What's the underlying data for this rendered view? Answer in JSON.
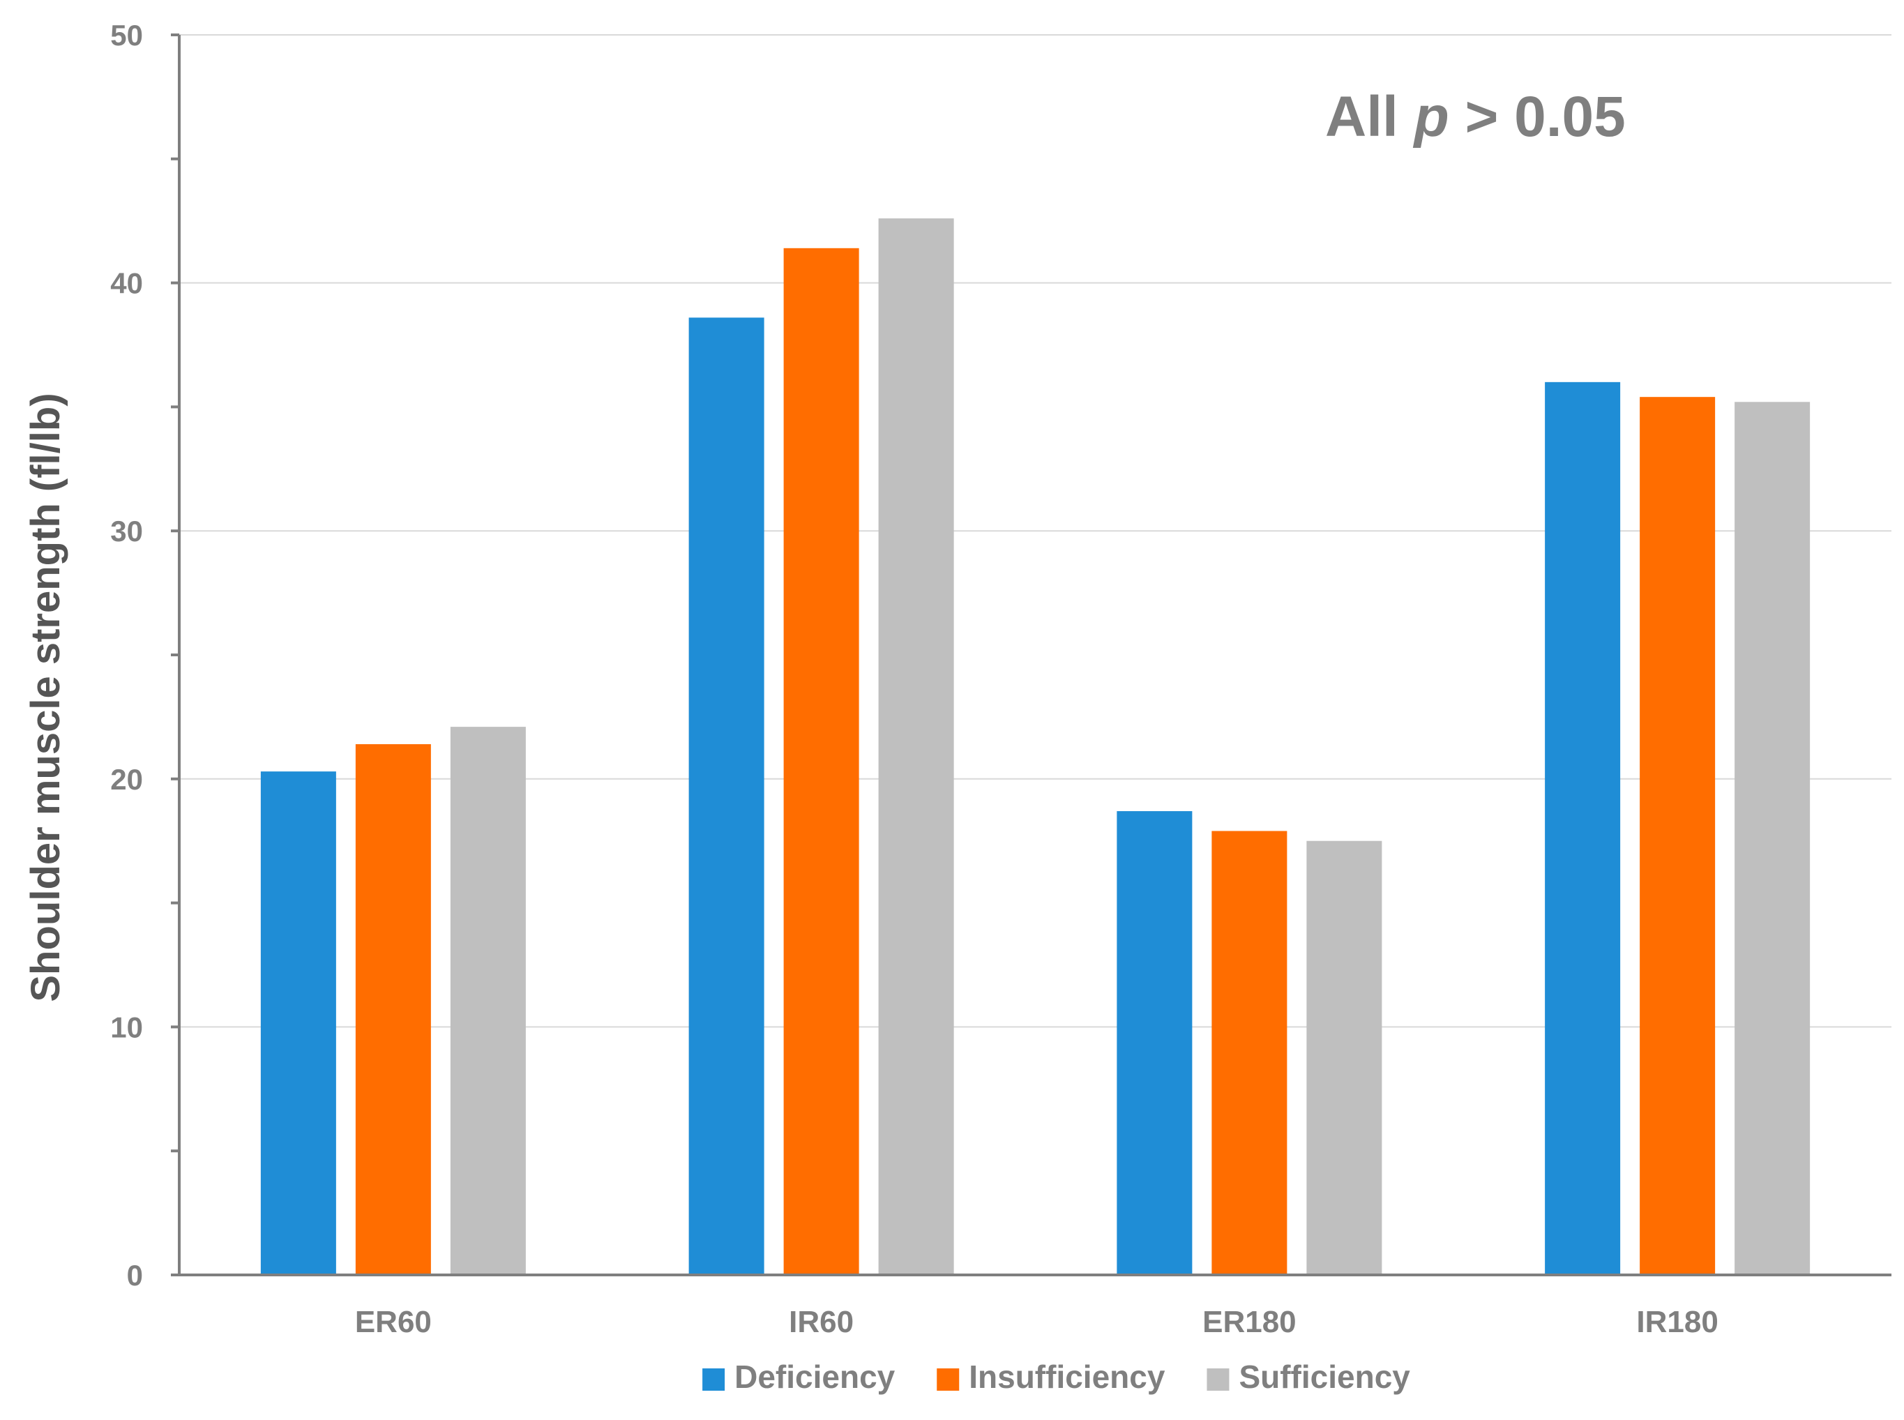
{
  "chart_data": {
    "type": "bar",
    "categories": [
      "ER60",
      "IR60",
      "ER180",
      "IR180"
    ],
    "series": [
      {
        "name": "Deficiency",
        "values": [
          20.3,
          38.6,
          18.7,
          36.0
        ],
        "color": "#1f8dd6"
      },
      {
        "name": "Insufficiency",
        "values": [
          21.4,
          41.4,
          17.9,
          35.4
        ],
        "color": "#ff6d00"
      },
      {
        "name": "Sufficiency",
        "values": [
          22.1,
          42.6,
          17.5,
          35.2
        ],
        "color": "#bfbfbf"
      }
    ],
    "ylabel": "Shoulder muscle strength (fl/lb)",
    "ylim": [
      0,
      50
    ],
    "yticks": [
      0,
      10,
      20,
      30,
      40,
      50
    ],
    "grid": true,
    "legend_position": "bottom",
    "annotation": {
      "prefix": "All ",
      "italic": "p",
      "suffix": " > 0.05"
    }
  }
}
